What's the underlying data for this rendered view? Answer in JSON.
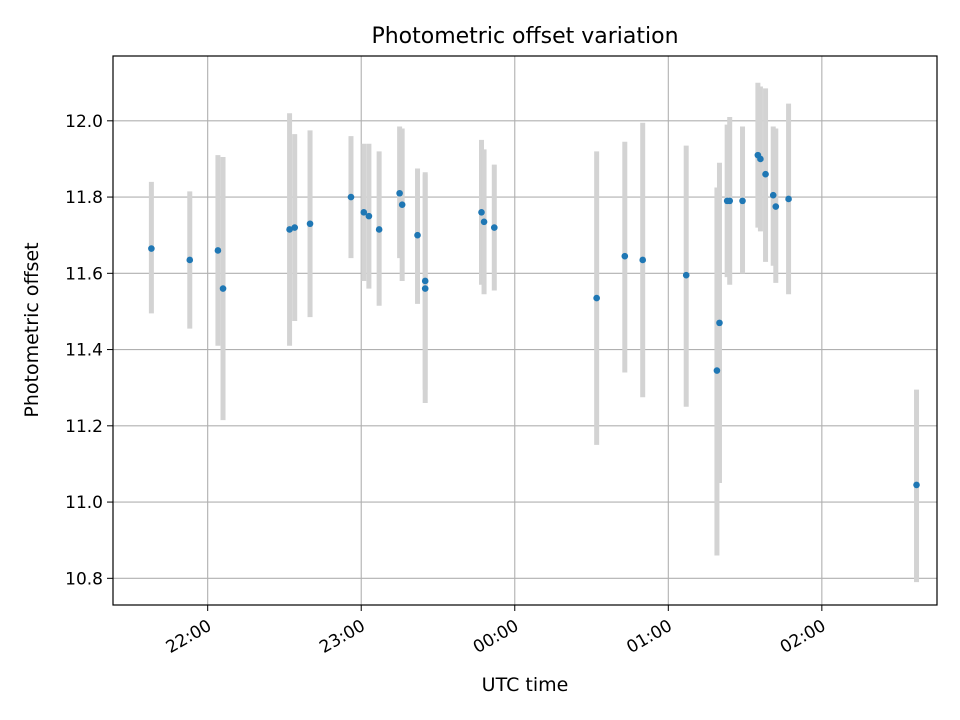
{
  "chart_data": {
    "type": "scatter",
    "title": "Photometric offset variation",
    "xlabel": "UTC time",
    "ylabel": "Photometric offset",
    "x_ticks": [
      "22:00",
      "23:00",
      "00:00",
      "01:00",
      "02:00"
    ],
    "y_ticks": [
      "10.8",
      "11.0",
      "11.2",
      "11.4",
      "11.6",
      "11.8",
      "12.0"
    ],
    "x_range_minutes_from_2130": [
      -7,
      315
    ],
    "ylim": [
      10.73,
      12.17
    ],
    "grid": true,
    "colors": {
      "point": "#1f77b4",
      "errorbar": "#d3d3d3",
      "grid": "#b0b0b0"
    },
    "points": [
      {
        "t": "21:38",
        "y": 11.665,
        "lo": 11.495,
        "hi": 11.84
      },
      {
        "t": "21:53",
        "y": 11.635,
        "lo": 11.455,
        "hi": 11.815
      },
      {
        "t": "22:04",
        "y": 11.66,
        "lo": 11.41,
        "hi": 11.91
      },
      {
        "t": "22:06",
        "y": 11.56,
        "lo": 11.215,
        "hi": 11.905
      },
      {
        "t": "22:32",
        "y": 11.715,
        "lo": 11.41,
        "hi": 12.02
      },
      {
        "t": "22:34",
        "y": 11.72,
        "lo": 11.475,
        "hi": 11.965
      },
      {
        "t": "22:40",
        "y": 11.73,
        "lo": 11.485,
        "hi": 11.975
      },
      {
        "t": "22:56",
        "y": 11.8,
        "lo": 11.64,
        "hi": 11.96
      },
      {
        "t": "23:01",
        "y": 11.76,
        "lo": 11.58,
        "hi": 11.94
      },
      {
        "t": "23:03",
        "y": 11.75,
        "lo": 11.56,
        "hi": 11.94
      },
      {
        "t": "23:07",
        "y": 11.715,
        "lo": 11.515,
        "hi": 11.92
      },
      {
        "t": "23:15",
        "y": 11.81,
        "lo": 11.64,
        "hi": 11.985
      },
      {
        "t": "23:16",
        "y": 11.78,
        "lo": 11.58,
        "hi": 11.98
      },
      {
        "t": "23:22",
        "y": 11.7,
        "lo": 11.52,
        "hi": 11.875
      },
      {
        "t": "23:25",
        "y": 11.58,
        "lo": 11.295,
        "hi": 11.865
      },
      {
        "t": "23:25",
        "y": 11.56,
        "lo": 11.26,
        "hi": 11.86
      },
      {
        "t": "23:47",
        "y": 11.76,
        "lo": 11.57,
        "hi": 11.95
      },
      {
        "t": "23:48",
        "y": 11.735,
        "lo": 11.545,
        "hi": 11.925
      },
      {
        "t": "23:52",
        "y": 11.72,
        "lo": 11.555,
        "hi": 11.885
      },
      {
        "t": "00:32",
        "y": 11.535,
        "lo": 11.15,
        "hi": 11.92
      },
      {
        "t": "00:43",
        "y": 11.645,
        "lo": 11.34,
        "hi": 11.945
      },
      {
        "t": "00:50",
        "y": 11.635,
        "lo": 11.275,
        "hi": 11.995
      },
      {
        "t": "01:07",
        "y": 11.595,
        "lo": 11.25,
        "hi": 11.935
      },
      {
        "t": "01:19",
        "y": 11.345,
        "lo": 10.86,
        "hi": 11.825
      },
      {
        "t": "01:20",
        "y": 11.47,
        "lo": 11.05,
        "hi": 11.89
      },
      {
        "t": "01:23",
        "y": 11.79,
        "lo": 11.59,
        "hi": 11.99
      },
      {
        "t": "01:24",
        "y": 11.79,
        "lo": 11.57,
        "hi": 12.01
      },
      {
        "t": "01:29",
        "y": 11.79,
        "lo": 11.6,
        "hi": 11.985
      },
      {
        "t": "01:35",
        "y": 11.91,
        "lo": 11.72,
        "hi": 12.1
      },
      {
        "t": "01:36",
        "y": 11.9,
        "lo": 11.71,
        "hi": 12.09
      },
      {
        "t": "01:38",
        "y": 11.86,
        "lo": 11.63,
        "hi": 12.085
      },
      {
        "t": "01:41",
        "y": 11.805,
        "lo": 11.62,
        "hi": 11.985
      },
      {
        "t": "01:42",
        "y": 11.775,
        "lo": 11.575,
        "hi": 11.98
      },
      {
        "t": "01:47",
        "y": 11.795,
        "lo": 11.545,
        "hi": 12.045
      },
      {
        "t": "02:37",
        "y": 11.045,
        "lo": 10.79,
        "hi": 11.295
      }
    ]
  }
}
